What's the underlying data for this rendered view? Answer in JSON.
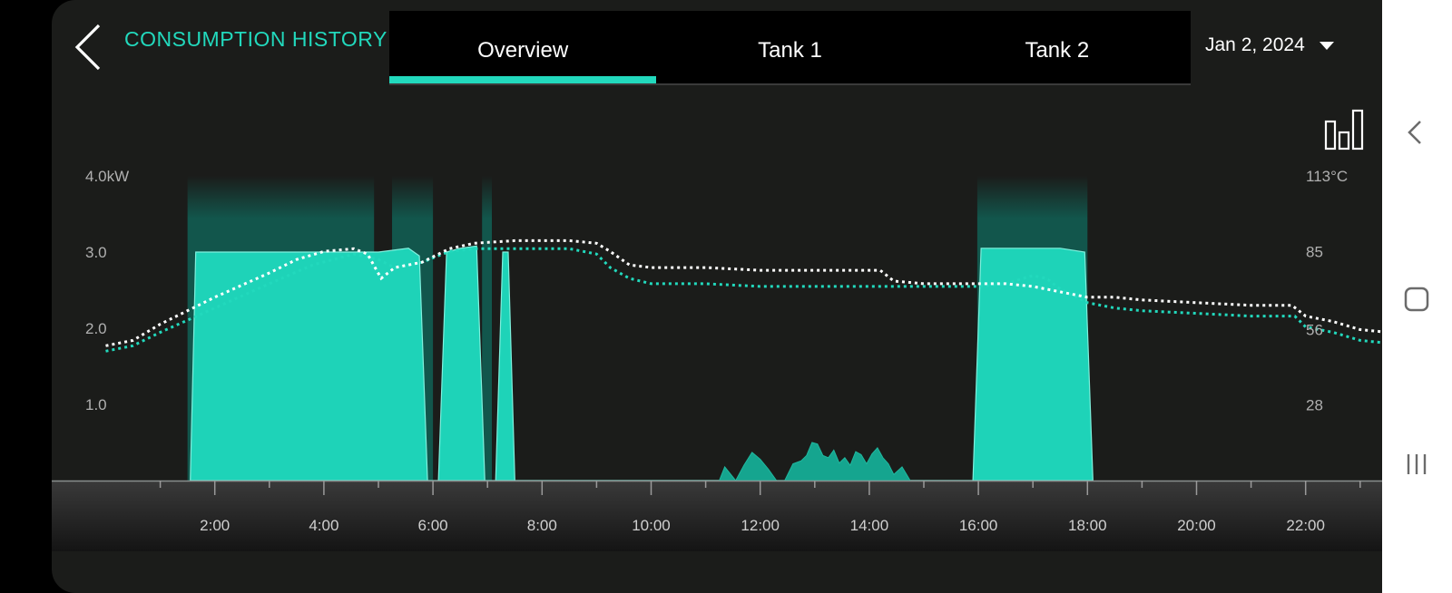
{
  "header": {
    "title": "CONSUMPTION HISTORY",
    "tabs": [
      {
        "label": "Overview",
        "active": true
      },
      {
        "label": "Tank 1",
        "active": false
      },
      {
        "label": "Tank 2",
        "active": false
      }
    ],
    "date": "Jan 2, 2024"
  },
  "icons": {
    "back": "back-arrow-icon",
    "chart_type": "bar-chart-icon",
    "dropdown": "caret-down-icon",
    "nav_back": "chevron-left-icon",
    "nav_home": "square-home-icon",
    "nav_recents": "recents-icon"
  },
  "colors": {
    "accent": "#22d9bd",
    "background": "#1b1c1a",
    "temp_dotted": "#ffffff",
    "temp_teal_dotted": "#22d9bd"
  },
  "chart_data": {
    "type": "area",
    "x_unit": "hours",
    "xlim": [
      -2,
      22
    ],
    "x_ticks": [
      "2:00",
      "4:00",
      "6:00",
      "8:00",
      "10:00",
      "12:00",
      "14:00",
      "16:00",
      "18:00",
      "20:00",
      "22:00"
    ],
    "y_left": {
      "ticks": [
        "4.0kW",
        "3.0",
        "2.0",
        "1.0"
      ],
      "values": [
        4.0,
        3.0,
        2.0,
        1.0
      ],
      "ylim": [
        0,
        4
      ]
    },
    "y_right": {
      "ticks": [
        "113°C",
        "85",
        "56",
        "28"
      ],
      "values": [
        113,
        85,
        56,
        28
      ],
      "ylim": [
        0,
        113
      ]
    },
    "power_series": {
      "name": "",
      "points": [
        [
          -0.45,
          0
        ],
        [
          -0.35,
          3.0
        ],
        [
          0.5,
          3.0
        ],
        [
          1.5,
          3.0
        ],
        [
          3.0,
          3.0
        ],
        [
          3.55,
          3.05
        ],
        [
          3.75,
          2.95
        ],
        [
          3.9,
          0
        ],
        [
          4.1,
          0
        ],
        [
          4.25,
          3.0
        ],
        [
          4.5,
          3.05
        ],
        [
          4.8,
          3.08
        ],
        [
          4.95,
          0
        ],
        [
          5.15,
          0
        ],
        [
          5.28,
          3.0
        ],
        [
          5.38,
          3.0
        ],
        [
          5.5,
          0
        ],
        [
          13.9,
          0
        ],
        [
          14.05,
          3.05
        ],
        [
          15.0,
          3.05
        ],
        [
          15.5,
          3.05
        ],
        [
          15.95,
          3.0
        ],
        [
          16.1,
          0
        ]
      ]
    },
    "power_small_series": {
      "name": "",
      "points": [
        [
          9.25,
          0
        ],
        [
          9.35,
          0.18
        ],
        [
          9.55,
          0.0
        ],
        [
          9.7,
          0.2
        ],
        [
          9.85,
          0.37
        ],
        [
          10.0,
          0.28
        ],
        [
          10.15,
          0.15
        ],
        [
          10.3,
          0
        ],
        [
          10.45,
          0
        ],
        [
          10.6,
          0.22
        ],
        [
          10.75,
          0.26
        ],
        [
          10.85,
          0.33
        ],
        [
          10.95,
          0.5
        ],
        [
          11.05,
          0.48
        ],
        [
          11.15,
          0.33
        ],
        [
          11.25,
          0.3
        ],
        [
          11.35,
          0.4
        ],
        [
          11.45,
          0.23
        ],
        [
          11.55,
          0.3
        ],
        [
          11.65,
          0.2
        ],
        [
          11.75,
          0.38
        ],
        [
          11.85,
          0.34
        ],
        [
          11.95,
          0.22
        ],
        [
          12.05,
          0.35
        ],
        [
          12.15,
          0.43
        ],
        [
          12.25,
          0.3
        ],
        [
          12.35,
          0.22
        ],
        [
          12.45,
          0.08
        ],
        [
          12.6,
          0.18
        ],
        [
          12.75,
          0
        ]
      ]
    },
    "heating_periods": [
      [
        -0.5,
        2.92
      ],
      [
        3.25,
        4.0
      ],
      [
        4.9,
        5.08
      ],
      [
        13.98,
        16.0
      ]
    ],
    "temp_series_white": {
      "name": "",
      "points": [
        [
          -2.0,
          50
        ],
        [
          -1.5,
          52
        ],
        [
          -1.0,
          58
        ],
        [
          0.0,
          68
        ],
        [
          1.0,
          77
        ],
        [
          1.5,
          82
        ],
        [
          2.0,
          85
        ],
        [
          2.55,
          86
        ],
        [
          2.8,
          84
        ],
        [
          3.05,
          75
        ],
        [
          3.3,
          79
        ],
        [
          3.8,
          81
        ],
        [
          4.3,
          86
        ],
        [
          4.75,
          88
        ],
        [
          5.5,
          89
        ],
        [
          6.5,
          89
        ],
        [
          7.0,
          88
        ],
        [
          7.25,
          85
        ],
        [
          7.6,
          80
        ],
        [
          8.0,
          79
        ],
        [
          9.0,
          79
        ],
        [
          10.0,
          78
        ],
        [
          11.0,
          78
        ],
        [
          12.2,
          78
        ],
        [
          12.45,
          74
        ],
        [
          13.0,
          73
        ],
        [
          14.0,
          73
        ],
        [
          14.5,
          73
        ],
        [
          15.0,
          72
        ],
        [
          15.5,
          70
        ],
        [
          16.0,
          68
        ],
        [
          16.5,
          68
        ],
        [
          17.0,
          67
        ],
        [
          18.0,
          66
        ],
        [
          19.0,
          65
        ],
        [
          19.75,
          65
        ],
        [
          20.0,
          61
        ],
        [
          20.5,
          59
        ],
        [
          21.0,
          56
        ],
        [
          21.5,
          55
        ],
        [
          22.0,
          51
        ],
        [
          22.5,
          51
        ],
        [
          23.0,
          50
        ]
      ]
    },
    "temp_series_teal": {
      "name": "",
      "points": [
        [
          -2.0,
          48
        ],
        [
          -1.5,
          50
        ],
        [
          -1.0,
          55
        ],
        [
          0.0,
          64
        ],
        [
          1.0,
          73
        ],
        [
          1.8,
          80
        ],
        [
          2.55,
          84
        ],
        [
          3.0,
          82
        ],
        [
          3.3,
          79
        ],
        [
          3.8,
          81
        ],
        [
          4.3,
          85
        ],
        [
          4.75,
          86
        ],
        [
          5.5,
          86
        ],
        [
          6.5,
          86
        ],
        [
          7.0,
          84
        ],
        [
          7.25,
          79
        ],
        [
          7.6,
          75
        ],
        [
          8.0,
          73
        ],
        [
          9.0,
          73
        ],
        [
          10.0,
          72
        ],
        [
          11.0,
          72
        ],
        [
          12.5,
          72
        ],
        [
          13.0,
          72
        ],
        [
          14.0,
          72
        ],
        [
          14.5,
          73
        ],
        [
          15.0,
          76
        ],
        [
          15.25,
          75
        ],
        [
          15.5,
          71
        ],
        [
          16.0,
          66
        ],
        [
          16.5,
          64
        ],
        [
          17.0,
          63
        ],
        [
          18.0,
          62
        ],
        [
          19.0,
          61
        ],
        [
          19.8,
          61
        ],
        [
          20.0,
          57
        ],
        [
          20.5,
          55
        ],
        [
          21.0,
          52
        ],
        [
          21.5,
          51
        ],
        [
          22.0,
          48
        ],
        [
          22.5,
          48
        ],
        [
          23.0,
          46
        ]
      ]
    }
  }
}
